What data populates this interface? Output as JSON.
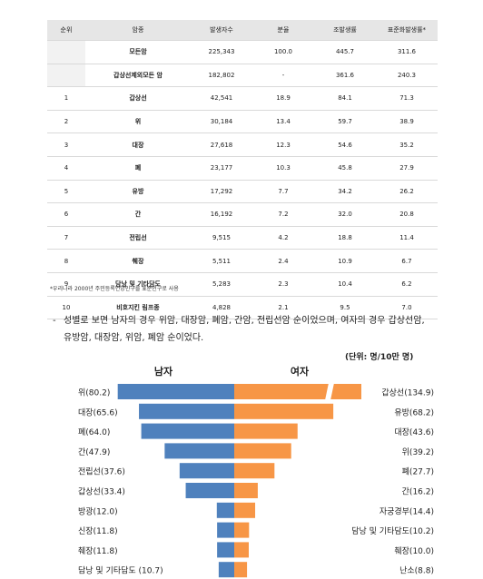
{
  "table": {
    "headers": [
      "순위",
      "암종",
      "발생자수",
      "분율",
      "조발생률",
      "표준화발생률*"
    ],
    "rows": [
      {
        "rank": "",
        "name": "모든암",
        "count": "225,343",
        "share": "100.0",
        "crude": "445.7",
        "asr": "311.6"
      },
      {
        "rank": "",
        "name": "갑상선제외모든 암",
        "count": "182,802",
        "share": "-",
        "crude": "361.6",
        "asr": "240.3"
      },
      {
        "rank": "1",
        "name": "갑상선",
        "count": "42,541",
        "share": "18.9",
        "crude": "84.1",
        "asr": "71.3"
      },
      {
        "rank": "2",
        "name": "위",
        "count": "30,184",
        "share": "13.4",
        "crude": "59.7",
        "asr": "38.9"
      },
      {
        "rank": "3",
        "name": "대장",
        "count": "27,618",
        "share": "12.3",
        "crude": "54.6",
        "asr": "35.2"
      },
      {
        "rank": "4",
        "name": "폐",
        "count": "23,177",
        "share": "10.3",
        "crude": "45.8",
        "asr": "27.9"
      },
      {
        "rank": "5",
        "name": "유방",
        "count": "17,292",
        "share": "7.7",
        "crude": "34.2",
        "asr": "26.2"
      },
      {
        "rank": "6",
        "name": "간",
        "count": "16,192",
        "share": "7.2",
        "crude": "32.0",
        "asr": "20.8"
      },
      {
        "rank": "7",
        "name": "전립선",
        "count": "9,515",
        "share": "4.2",
        "crude": "18.8",
        "asr": "11.4"
      },
      {
        "rank": "8",
        "name": "췌장",
        "count": "5,511",
        "share": "2.4",
        "crude": "10.9",
        "asr": "6.7"
      },
      {
        "rank": "9",
        "name": "담낭 및 기타담도",
        "count": "5,283",
        "share": "2.3",
        "crude": "10.4",
        "asr": "6.2"
      },
      {
        "rank": "10",
        "name": "비호지킨 림프종",
        "count": "4,828",
        "share": "2.1",
        "crude": "9.5",
        "asr": "7.0"
      }
    ],
    "note": "*우리나라 2000년 주민등록연앙인구를 표준인구로 사용"
  },
  "paragraph": {
    "dash": "-",
    "line1": "성별로 보면 남자의 경우 위암, 대장암, 폐암, 간암, 전립선암 순이었으며, 여자의 경우 갑상선암,",
    "line2": "유방암, 대장암, 위암, 폐암 순이었다."
  },
  "chart_data": {
    "type": "bar",
    "unit_label": "(단위: 명/10만 명)",
    "male_label": "남자",
    "female_label": "여자",
    "male_color": "#4f81bd",
    "female_color": "#f79646",
    "male": [
      {
        "label": "위(80.2)",
        "value": 80.2
      },
      {
        "label": "대장(65.6)",
        "value": 65.6
      },
      {
        "label": "폐(64.0)",
        "value": 64.0
      },
      {
        "label": "간(47.9)",
        "value": 47.9
      },
      {
        "label": "전립선(37.6)",
        "value": 37.6
      },
      {
        "label": "갑상선(33.4)",
        "value": 33.4
      },
      {
        "label": "방광(12.0)",
        "value": 12.0
      },
      {
        "label": "신장(11.8)",
        "value": 11.8
      },
      {
        "label": "췌장(11.8)",
        "value": 11.8
      },
      {
        "label": "담낭 및 기타담도 (10.7)",
        "value": 10.7
      }
    ],
    "female": [
      {
        "label": "갑상선(134.9)",
        "value": 134.9,
        "broken": true
      },
      {
        "label": "유방(68.2)",
        "value": 68.2
      },
      {
        "label": "대장(43.6)",
        "value": 43.6
      },
      {
        "label": "위(39.2)",
        "value": 39.2
      },
      {
        "label": "폐(27.7)",
        "value": 27.7
      },
      {
        "label": "간(16.2)",
        "value": 16.2
      },
      {
        "label": "자궁경부(14.4)",
        "value": 14.4
      },
      {
        "label": "담낭 및 기타담도(10.2)",
        "value": 10.2
      },
      {
        "label": "췌장(10.0)",
        "value": 10.0
      },
      {
        "label": "난소(8.8)",
        "value": 8.8
      }
    ],
    "x_ticks_left": [
      "100",
      "80",
      "60",
      "40",
      "20",
      "0"
    ],
    "x_ticks_right": [
      "20",
      "40",
      "60"
    ],
    "x_tick_end": "150",
    "xlim_left": [
      0,
      100
    ],
    "xlim_right": [
      0,
      150
    ]
  }
}
